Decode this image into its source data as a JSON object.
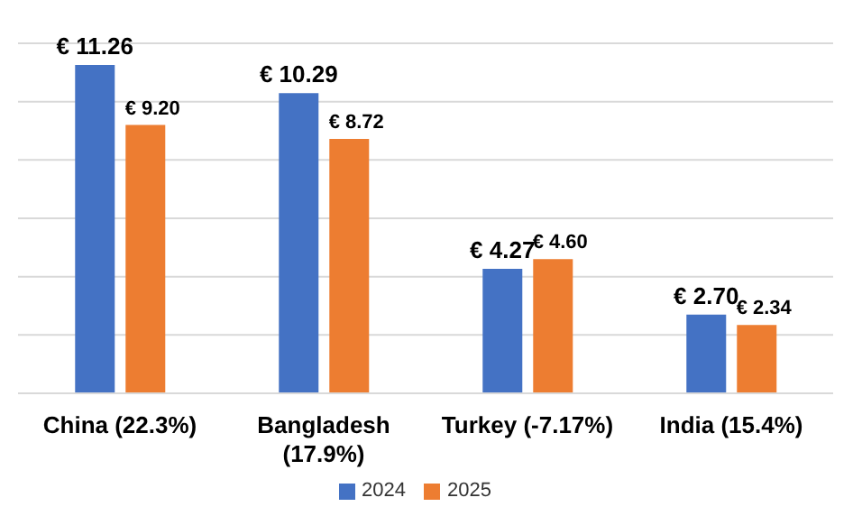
{
  "chart_data": {
    "type": "bar",
    "categories": [
      "China (22.3%)",
      "Bangladesh (17.9%)",
      "Turkey (-7.17%)",
      "India (15.4%)"
    ],
    "series": [
      {
        "name": "2024",
        "color": "#4472c4",
        "values": [
          11.26,
          10.29,
          4.27,
          2.7
        ],
        "value_labels": [
          "€ 11.26",
          "€ 10.29",
          "€ 4.27",
          "€ 2.70"
        ]
      },
      {
        "name": "2025",
        "color": "#ed7d31",
        "values": [
          9.2,
          8.72,
          4.6,
          2.34
        ],
        "value_labels": [
          "€ 9.20",
          "€ 8.72",
          "€ 4.60",
          "€ 2.34"
        ]
      }
    ],
    "ylim": [
      0,
      12
    ],
    "grid": "y",
    "legend": "bottom",
    "tick_labels": "x"
  }
}
